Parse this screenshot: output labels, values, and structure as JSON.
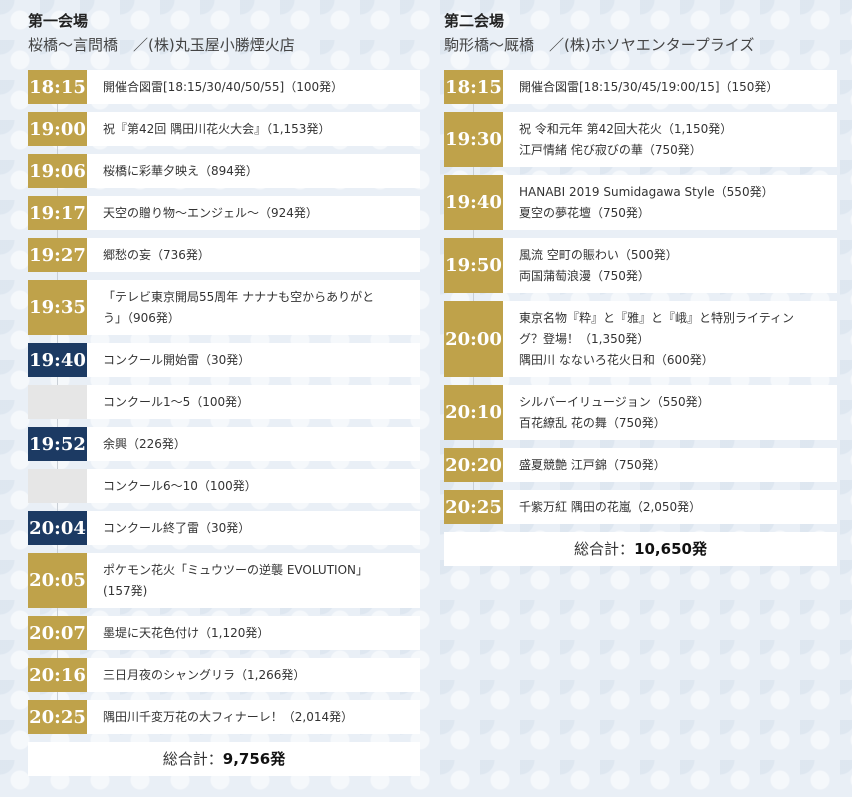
{
  "venue1": {
    "title": "第一会場",
    "subtitle": "桜橋～言問橋　／(株)丸玉屋小勝煙火店",
    "rows": [
      {
        "time": "18:15",
        "style": "gold",
        "lines": [
          "開催合図雷[18:15/30/40/50/55]（100発）"
        ]
      },
      {
        "time": "19:00",
        "style": "gold",
        "lines": [
          "祝『第42回 隅田川花火大会』（1,153発）"
        ]
      },
      {
        "time": "19:06",
        "style": "gold",
        "lines": [
          "桜橋に彩華夕映え（894発）"
        ]
      },
      {
        "time": "19:17",
        "style": "gold",
        "lines": [
          "天空の贈り物～エンジェル～（924発）"
        ]
      },
      {
        "time": "19:27",
        "style": "gold",
        "lines": [
          "郷愁の妄（736発）"
        ]
      },
      {
        "time": "19:35",
        "style": "gold",
        "lines": [
          "「テレビ東京開局55周年 ナナナも空からありがと",
          "う」（906発）"
        ]
      },
      {
        "time": "19:40",
        "style": "navy",
        "lines": [
          "コンクール開始雷（30発）"
        ]
      },
      {
        "time": "",
        "style": "blank",
        "lines": [
          "コンクール1～5（100発）"
        ]
      },
      {
        "time": "19:52",
        "style": "navy",
        "lines": [
          "余興（226発）"
        ]
      },
      {
        "time": "",
        "style": "blank",
        "lines": [
          "コンクール6～10（100発）"
        ]
      },
      {
        "time": "20:04",
        "style": "navy",
        "lines": [
          "コンクール終了雷（30発）"
        ]
      },
      {
        "time": "20:05",
        "style": "gold",
        "lines": [
          "ポケモン花火「ミュウツーの逆襲 EVOLUTION」",
          "(157発)"
        ]
      },
      {
        "time": "20:07",
        "style": "gold",
        "lines": [
          "墨堤に天花色付け（1,120発）"
        ]
      },
      {
        "time": "20:16",
        "style": "gold",
        "lines": [
          "三日月夜のシャングリラ（1,266発）"
        ]
      },
      {
        "time": "20:25",
        "style": "gold",
        "lines": [
          "隅田川千変万花の大フィナーレ！（2,014発）"
        ]
      }
    ],
    "total_label": "総合計：",
    "total_value": "9,756発"
  },
  "venue2": {
    "title": "第二会場",
    "subtitle": "駒形橋～厩橋　／(株)ホソヤエンタープライズ",
    "rows": [
      {
        "time": "18:15",
        "style": "gold",
        "lines": [
          "開催合図雷[18:15/30/45/19:00/15]（150発）"
        ]
      },
      {
        "time": "19:30",
        "style": "gold",
        "lines": [
          "祝 令和元年 第42回大花火（1,150発）",
          "江戸情緒 侘び寂びの華（750発）"
        ]
      },
      {
        "time": "19:40",
        "style": "gold",
        "lines": [
          "HANABI 2019 Sumidagawa Style（550発）",
          "夏空の夢花壇（750発）"
        ]
      },
      {
        "time": "19:50",
        "style": "gold",
        "lines": [
          "風流 空町の賑わい（500発）",
          "両国蒲萄浪漫（750発）"
        ]
      },
      {
        "time": "20:00",
        "style": "gold",
        "lines": [
          "東京名物『粋』と『雅』と『峨』と特別ライティン",
          "グ？登場！（1,350発）",
          "隅田川 なないろ花火日和（600発）"
        ]
      },
      {
        "time": "20:10",
        "style": "gold",
        "lines": [
          "シルバーイリュージョン（550発）",
          "百花繚乱 花の舞（750発）"
        ]
      },
      {
        "time": "20:20",
        "style": "gold",
        "lines": [
          "盛夏競艶 江戸錦（750発）"
        ]
      },
      {
        "time": "20:25",
        "style": "gold",
        "lines": [
          "千紫万紅 隅田の花嵐（2,050発）"
        ]
      }
    ],
    "total_label": "総合計：",
    "total_value": "10,650発"
  }
}
